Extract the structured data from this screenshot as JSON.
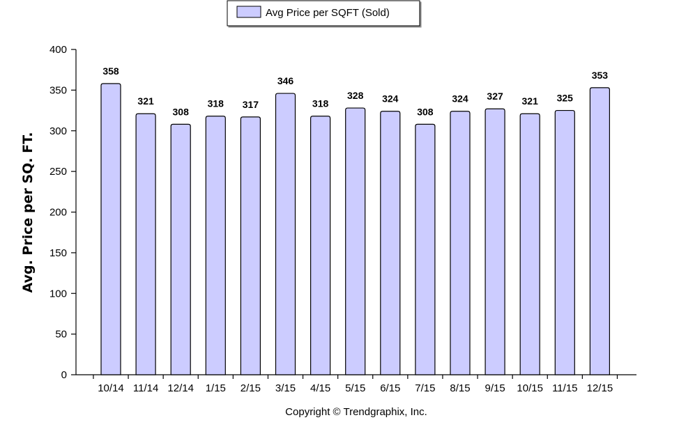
{
  "chart_data": {
    "type": "bar",
    "categories": [
      "10/14",
      "11/14",
      "12/14",
      "1/15",
      "2/15",
      "3/15",
      "4/15",
      "5/15",
      "6/15",
      "7/15",
      "8/15",
      "9/15",
      "10/15",
      "11/15",
      "12/15"
    ],
    "series": [
      {
        "name": "Avg Price per SQFT (Sold)",
        "values": [
          358,
          321,
          308,
          318,
          317,
          346,
          318,
          328,
          324,
          308,
          324,
          327,
          321,
          325,
          353
        ]
      }
    ],
    "ylabel": "Avg. Price per SQ. FT.",
    "xlabel": "",
    "ylim": [
      0,
      400
    ],
    "yticks": [
      0,
      50,
      100,
      150,
      200,
      250,
      300,
      350,
      400
    ],
    "legend_position": "top-center",
    "grid": false,
    "bar_color": "#ccccff",
    "bar_edge_color": "#000000"
  },
  "footer": {
    "copyright": "Copyright © Trendgraphix, Inc."
  }
}
